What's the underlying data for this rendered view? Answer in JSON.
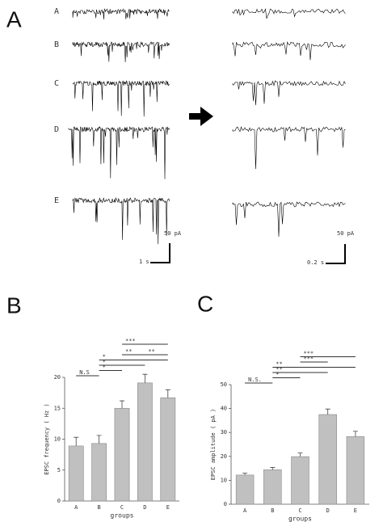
{
  "panel_a": {
    "panel_label": "A",
    "rows": [
      "A",
      "B",
      "C",
      "D",
      "E"
    ],
    "scale_left": {
      "amplitude": "50 pA",
      "time": "1 s"
    },
    "scale_right": {
      "amplitude": "50 pA",
      "time": "0.2 s"
    }
  },
  "chart_data": [
    {
      "type": "bar",
      "panel_label": "B",
      "ylabel": "EPSC frequency ( Hz )",
      "xlabel": "groups",
      "categories": [
        "A",
        "B",
        "C",
        "D",
        "E"
      ],
      "values": [
        8.9,
        9.3,
        15.0,
        19.1,
        16.7
      ],
      "errors": [
        1.4,
        1.3,
        1.2,
        1.4,
        1.3
      ],
      "color": "#c0c0c0",
      "ylim": [
        0,
        20
      ],
      "yticks": [
        0,
        5,
        10,
        15,
        20
      ],
      "annotations": [
        {
          "label": "N.S",
          "from": "A",
          "to": "B"
        },
        {
          "label": "*",
          "from": "B",
          "to": "C"
        },
        {
          "label": "*",
          "from": "B",
          "to": "D"
        },
        {
          "label": "*",
          "from": "B",
          "to": "E"
        },
        {
          "label": "**",
          "from": "C",
          "to": "D"
        },
        {
          "label": "**",
          "from": "D",
          "to": "E"
        },
        {
          "label": "***",
          "from": "C",
          "to": "E"
        }
      ]
    },
    {
      "type": "bar",
      "panel_label": "C",
      "ylabel": "EPSC amplitude ( pA )",
      "xlabel": "groups",
      "categories": [
        "A",
        "B",
        "C",
        "D",
        "E"
      ],
      "values": [
        12.2,
        14.4,
        19.9,
        37.5,
        28.3
      ],
      "errors": [
        0.8,
        1.0,
        1.5,
        2.3,
        2.2
      ],
      "color": "#c0c0c0",
      "ylim": [
        0,
        50
      ],
      "yticks": [
        0,
        10,
        20,
        30,
        40,
        50
      ],
      "annotations": [
        {
          "label": "N.S.",
          "from": "A",
          "to": "B"
        },
        {
          "label": "*",
          "from": "B",
          "to": "C"
        },
        {
          "label": "**",
          "from": "B",
          "to": "D"
        },
        {
          "label": "**",
          "from": "B",
          "to": "E"
        },
        {
          "label": "***",
          "from": "C",
          "to": "D"
        },
        {
          "label": "***",
          "from": "C",
          "to": "E"
        }
      ]
    }
  ]
}
